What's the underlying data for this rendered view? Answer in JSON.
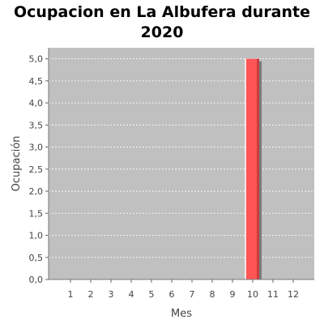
{
  "chart_data": {
    "type": "bar",
    "title_lines": [
      "Ocupacion en  La Albufera durante",
      "2020"
    ],
    "xlabel": "Mes",
    "ylabel": "Ocupación",
    "categories": [
      "1",
      "2",
      "3",
      "4",
      "5",
      "6",
      "7",
      "8",
      "9",
      "10",
      "11",
      "12"
    ],
    "values": [
      0,
      0,
      0,
      0,
      0,
      0,
      0,
      0,
      0,
      5,
      0,
      0
    ],
    "ylim": [
      0,
      5.25
    ],
    "yticks": [
      0,
      0.5,
      1.0,
      1.5,
      2.0,
      2.5,
      3.0,
      3.5,
      4.0,
      4.5,
      5.0
    ],
    "ytick_labels": [
      "0,0",
      "0,5",
      "1,0",
      "1,5",
      "2,0",
      "2,5",
      "3,0",
      "3,5",
      "4,0",
      "4,5",
      "5,0"
    ],
    "grid": true,
    "legend": "none",
    "colors": {
      "plot_background": "#c0c0c0",
      "bar": "#ff5555",
      "grid": "#ffffff"
    }
  }
}
